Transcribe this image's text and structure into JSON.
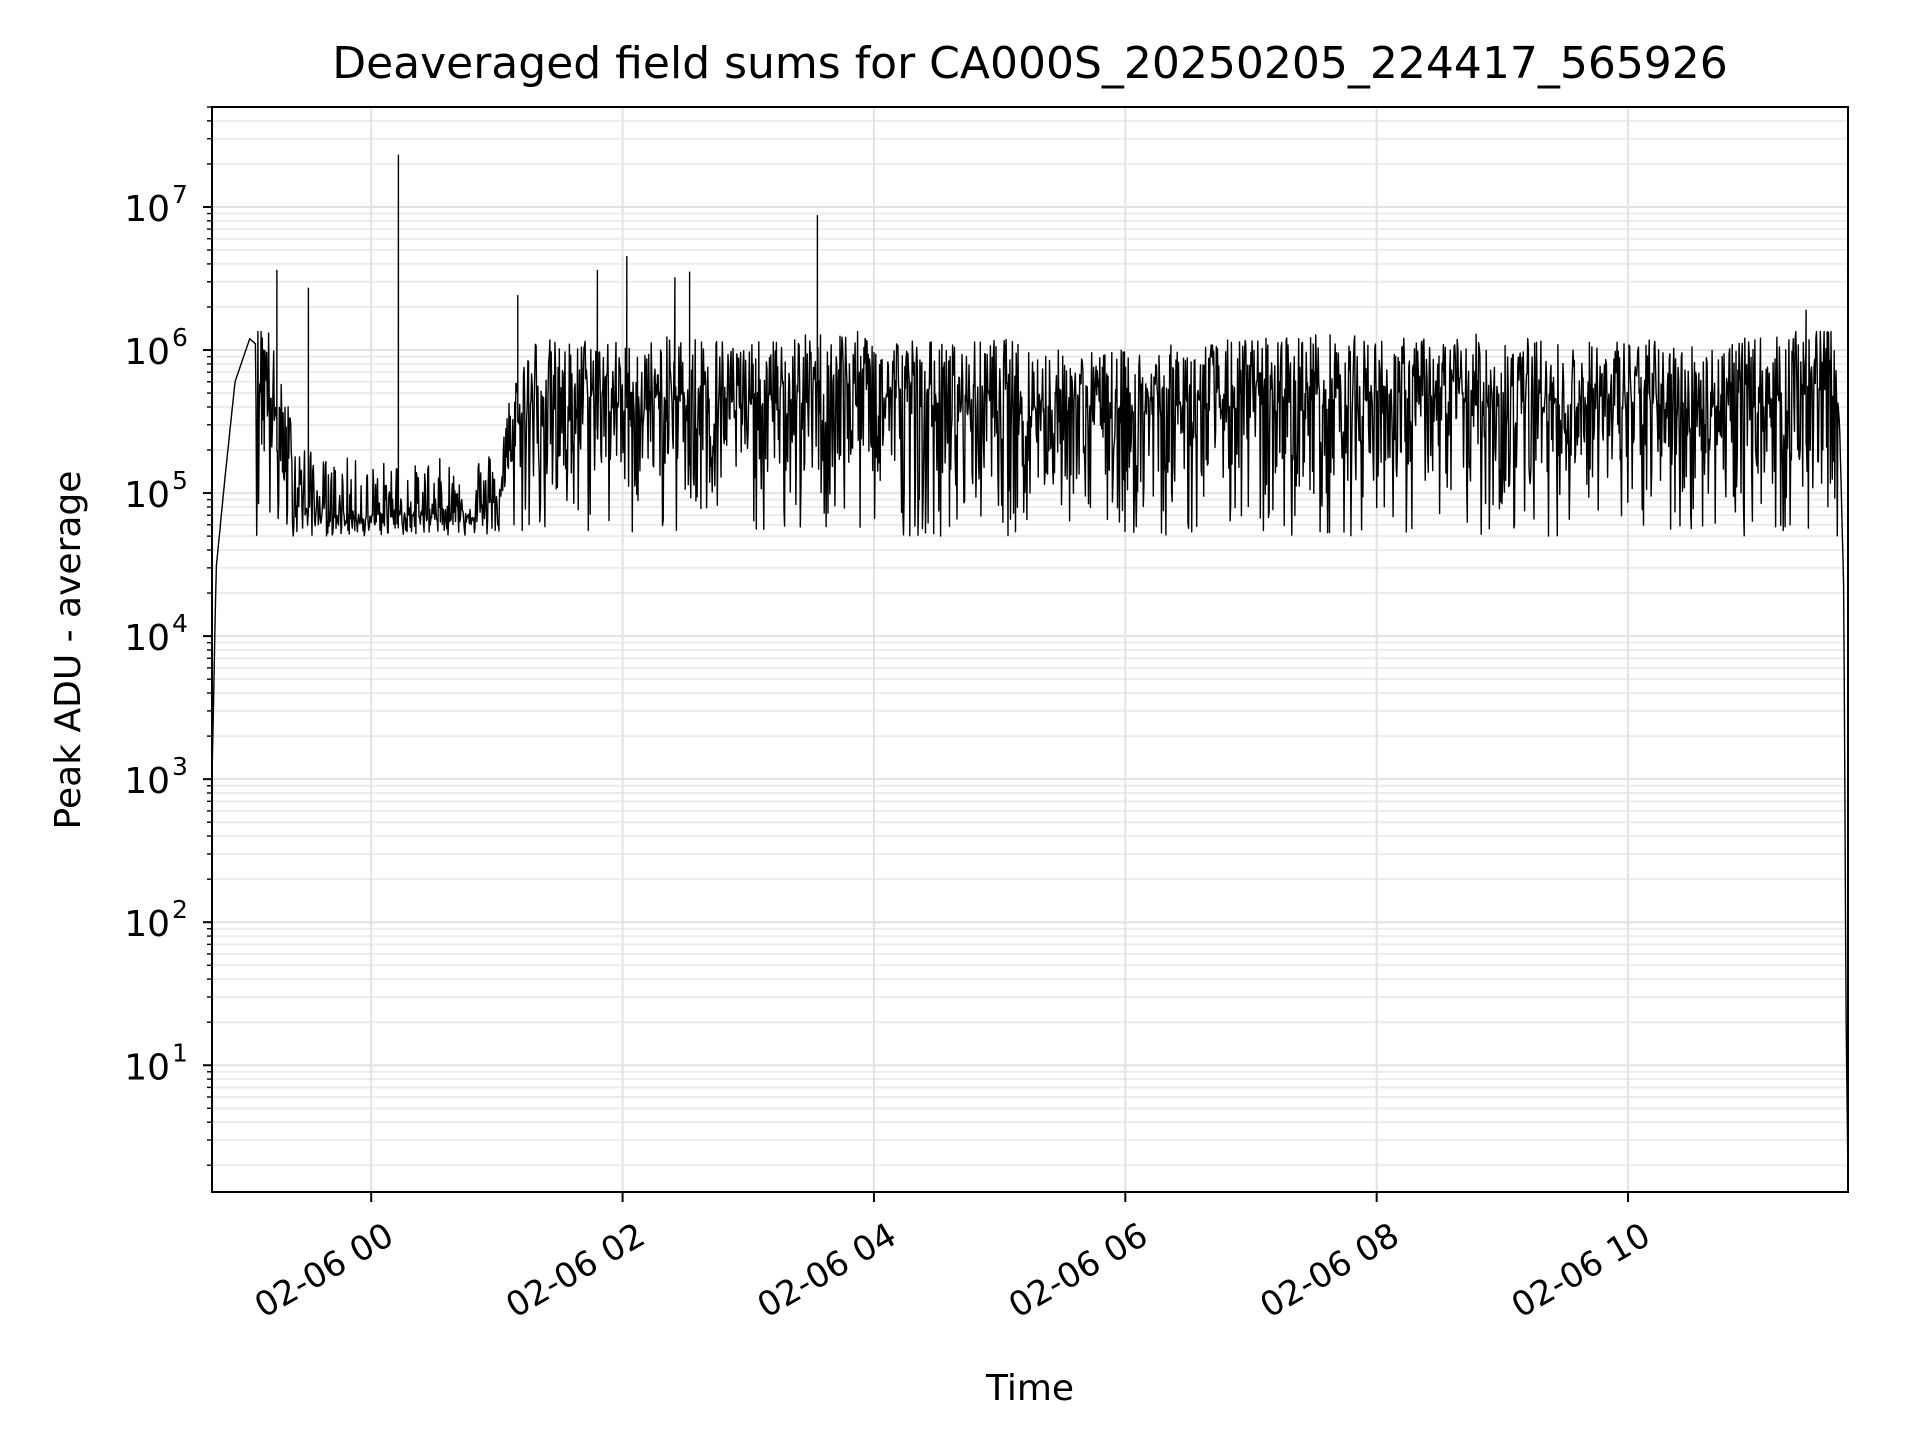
{
  "chart_data": {
    "type": "line",
    "title": "Deaveraged field sums for CA000S_20250205_224417_565926",
    "xlabel": "Time",
    "ylabel": "Peak ADU - average",
    "yscale": "log",
    "xlim": [
      "2025-02-05 22:44",
      "2025-02-06 11:45"
    ],
    "ylim": [
      1.3,
      50000000
    ],
    "grid": true,
    "legend": "none",
    "line_color": "#000000",
    "x_ticks": [
      {
        "value": "2025-02-06 00:00",
        "label": "02-06 00"
      },
      {
        "value": "2025-02-06 02:00",
        "label": "02-06 02"
      },
      {
        "value": "2025-02-06 04:00",
        "label": "02-06 04"
      },
      {
        "value": "2025-02-06 06:00",
        "label": "02-06 06"
      },
      {
        "value": "2025-02-06 08:00",
        "label": "02-06 08"
      },
      {
        "value": "2025-02-06 10:00",
        "label": "02-06 10"
      }
    ],
    "y_ticks": [
      {
        "value": 10,
        "base": "10",
        "exp": "1"
      },
      {
        "value": 100,
        "base": "10",
        "exp": "2"
      },
      {
        "value": 1000,
        "base": "10",
        "exp": "3"
      },
      {
        "value": 10000,
        "base": "10",
        "exp": "4"
      },
      {
        "value": 100000,
        "base": "10",
        "exp": "5"
      },
      {
        "value": 1000000,
        "base": "10",
        "exp": "6"
      },
      {
        "value": 10000000,
        "base": "10",
        "exp": "7"
      }
    ],
    "series": [
      {
        "x": [
          "2025-02-05 22:44",
          "2025-02-05 22:46",
          "2025-02-05 22:50",
          "2025-02-05 22:55",
          "2025-02-05 23:02",
          "2025-02-05 23:08",
          "2025-02-05 23:12",
          "2025-02-05 23:16",
          "2025-02-05 23:20",
          "2025-02-05 23:25",
          "2025-02-05 23:30",
          "2025-02-05 23:36",
          "2025-02-05 23:42",
          "2025-02-05 23:50",
          "2025-02-05 23:58",
          "2025-02-06 00:06",
          "2025-02-06 00:13",
          "2025-02-06 00:20",
          "2025-02-06 00:30",
          "2025-02-06 00:40",
          "2025-02-06 00:50",
          "2025-02-06 01:00",
          "2025-02-06 01:10",
          "2025-02-06 01:20",
          "2025-02-06 01:30",
          "2025-02-06 01:40",
          "2025-02-06 01:50",
          "2025-02-06 02:00",
          "2025-02-06 02:20",
          "2025-02-06 02:40",
          "2025-02-06 03:00",
          "2025-02-06 03:20",
          "2025-02-06 03:33",
          "2025-02-06 03:40",
          "2025-02-06 04:00",
          "2025-02-06 04:20",
          "2025-02-06 04:40",
          "2025-02-06 05:00",
          "2025-02-06 05:30",
          "2025-02-06 06:00",
          "2025-02-06 06:30",
          "2025-02-06 07:00",
          "2025-02-06 07:30",
          "2025-02-06 08:00",
          "2025-02-06 08:30",
          "2025-02-06 09:00",
          "2025-02-06 09:30",
          "2025-02-06 10:00",
          "2025-02-06 10:30",
          "2025-02-06 11:00",
          "2025-02-06 11:20",
          "2025-02-06 11:30",
          "2025-02-06 11:38",
          "2025-02-06 11:41",
          "2025-02-06 11:43",
          "2025-02-06 11:44",
          "2025-02-06 11:45"
        ],
        "y": [
          1000,
          30000,
          120000,
          600000,
          1200000,
          1000000,
          600000,
          300000,
          200000,
          120000,
          90000,
          80000,
          75000,
          80000,
          70000,
          75000,
          80000,
          70000,
          80000,
          75000,
          85000,
          90000,
          400000,
          600000,
          500000,
          550000,
          600000,
          500000,
          550000,
          600000,
          500000,
          550000,
          600000,
          650000,
          600000,
          550000,
          500000,
          550000,
          450000,
          450000,
          500000,
          550000,
          600000,
          550000,
          550000,
          600000,
          500000,
          550000,
          500000,
          550000,
          600000,
          800000,
          1100000,
          300000,
          20000,
          30,
          1.5
        ],
        "envelope_high": 1200000,
        "envelope_low": 50000,
        "spikes": [
          {
            "x": "2025-02-05 23:15",
            "y": 3600000
          },
          {
            "x": "2025-02-05 23:30",
            "y": 2700000
          },
          {
            "x": "2025-02-06 00:13",
            "y": 23000000
          },
          {
            "x": "2025-02-06 01:10",
            "y": 2400000
          },
          {
            "x": "2025-02-06 01:48",
            "y": 3600000
          },
          {
            "x": "2025-02-06 02:02",
            "y": 4500000
          },
          {
            "x": "2025-02-06 02:25",
            "y": 3200000
          },
          {
            "x": "2025-02-06 02:32",
            "y": 3500000
          },
          {
            "x": "2025-02-06 03:33",
            "y": 8700000
          },
          {
            "x": "2025-02-06 11:25",
            "y": 1900000
          }
        ]
      }
    ]
  }
}
